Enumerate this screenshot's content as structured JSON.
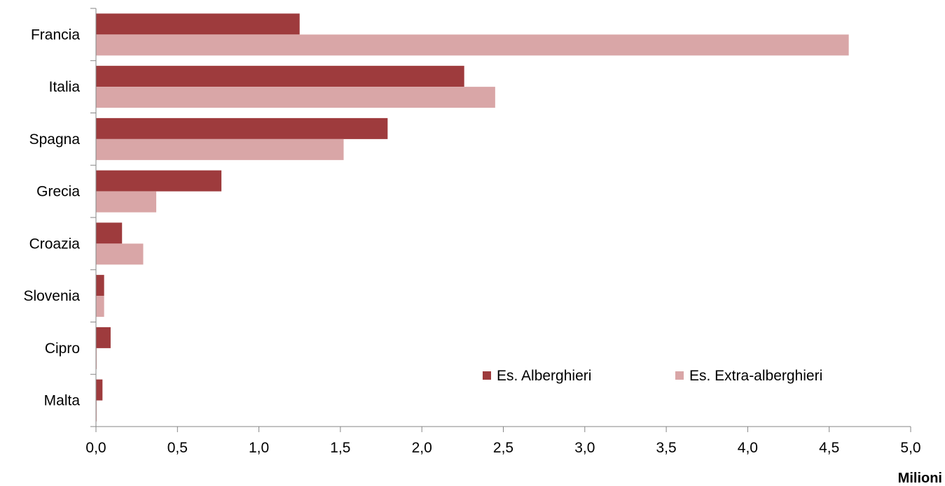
{
  "chart_data": {
    "type": "bar",
    "orientation": "horizontal",
    "categories": [
      "Francia",
      "Italia",
      "Spagna",
      "Grecia",
      "Croazia",
      "Slovenia",
      "Cipro",
      "Malta"
    ],
    "series": [
      {
        "name": "Es. Alberghieri",
        "color": "#9e3b3d",
        "values": [
          1.25,
          2.26,
          1.79,
          0.77,
          0.16,
          0.05,
          0.09,
          0.04
        ]
      },
      {
        "name": "Es. Extra-alberghieri",
        "color": "#d9a6a7",
        "values": [
          4.62,
          2.45,
          1.52,
          0.37,
          0.29,
          0.05,
          0.005,
          0.005
        ]
      }
    ],
    "xlabel": "Milioni",
    "ylabel": "",
    "xlim": [
      0,
      5.0
    ],
    "x_ticks": [
      "0,0",
      "0,5",
      "1,0",
      "1,5",
      "2,0",
      "2,5",
      "3,0",
      "3,5",
      "4,0",
      "4,5",
      "5,0"
    ],
    "grid": false,
    "legend_position": "bottom-right-inside"
  }
}
